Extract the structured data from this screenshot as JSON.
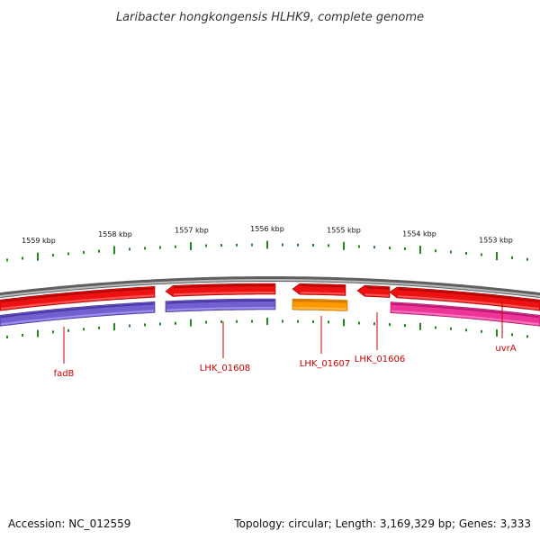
{
  "title": "Laribacter hongkongensis HLHK9, complete genome",
  "footer": {
    "accession": "Accession: NC_012559",
    "summary": "Topology: circular; Length: 3,169,329 bp; Genes: 3,333"
  },
  "colors": {
    "backbone": "#8a8a8a",
    "forward_cds": "#ee1111",
    "reverse_cds": "#7060d0",
    "tick": "#228822",
    "label": "#cc0000",
    "orange_cds": "#ff9900",
    "magenta_cds": "#ee3399"
  },
  "scale": {
    "unit": "kbp",
    "labels": [
      "1559 kbp",
      "1558 kbp",
      "1557 kbp",
      "1556 kbp",
      "1555 kbp",
      "1554 kbp",
      "1553 kbp"
    ]
  },
  "genes": [
    {
      "name": "fadB",
      "color": "#7060d0"
    },
    {
      "name": "LHK_01608",
      "color": "#7060d0"
    },
    {
      "name": "LHK_01607",
      "color": "#ff9900"
    },
    {
      "name": "LHK_01606",
      "color": "#ee1111"
    },
    {
      "name": "uvrA",
      "color": "#ee3399"
    }
  ]
}
